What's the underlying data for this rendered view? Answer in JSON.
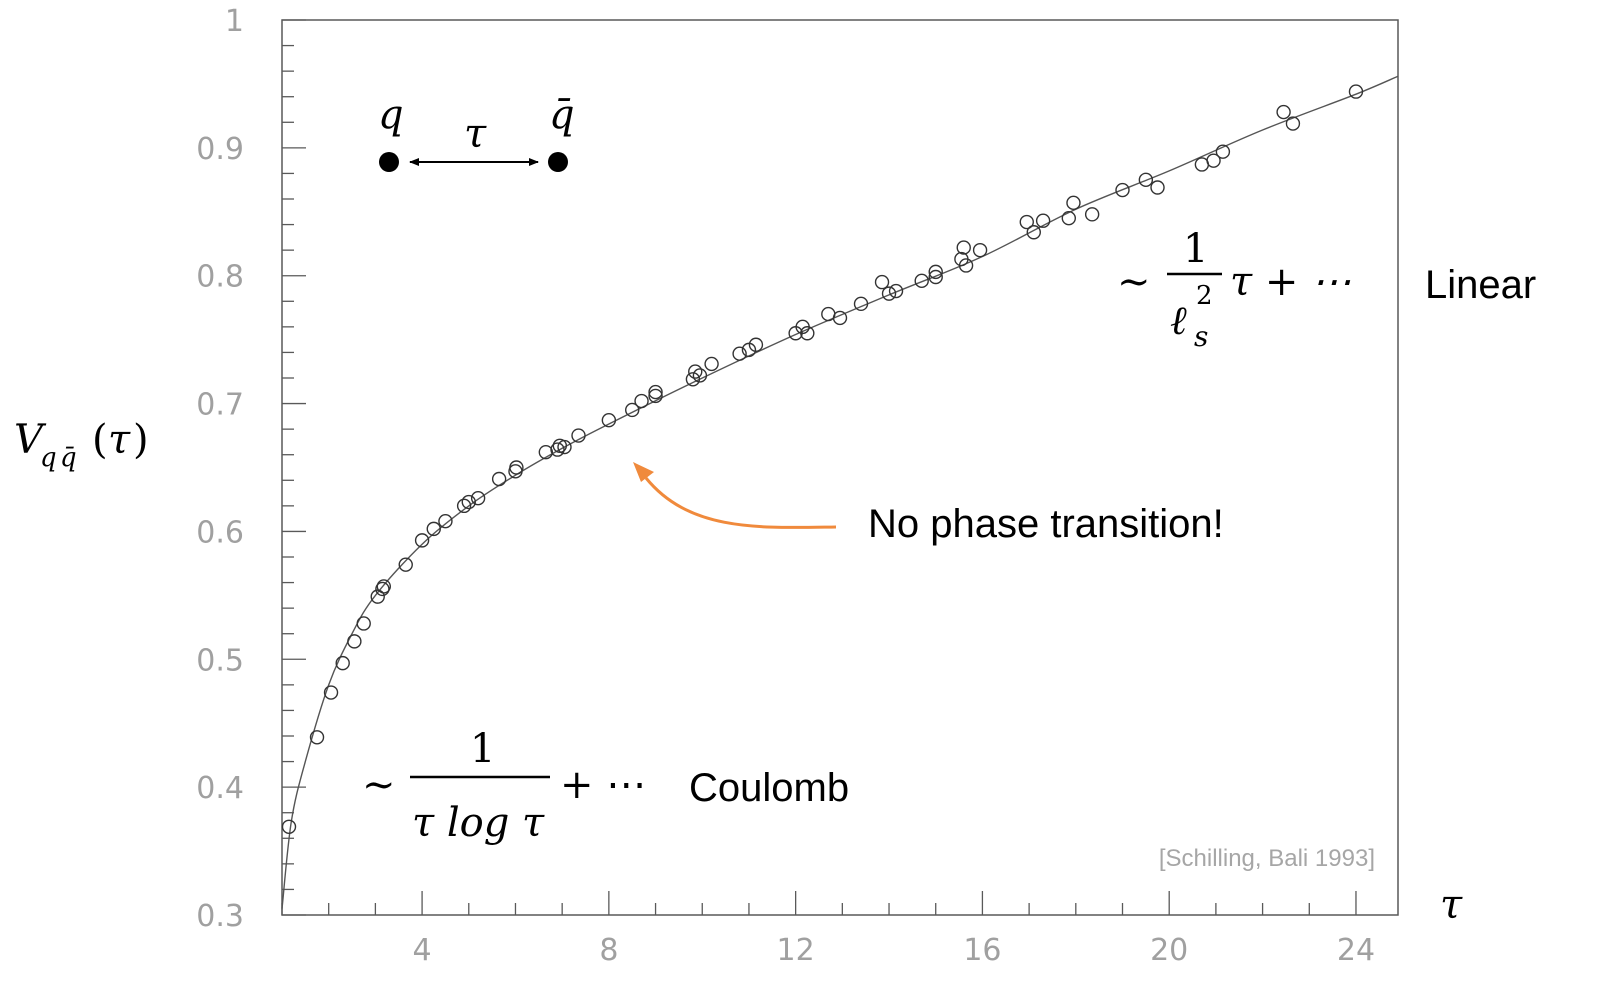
{
  "chart_data": {
    "type": "scatter",
    "title": "",
    "xlabel": "τ",
    "ylabel": "V_{q q̄}(τ)",
    "xlim": [
      1,
      24.9
    ],
    "ylim": [
      0.3,
      1.0
    ],
    "x_ticks": [
      4,
      8,
      12,
      16,
      20,
      24
    ],
    "x_tick_labels": [
      "4",
      "8",
      "12",
      "16",
      "20",
      "24"
    ],
    "y_ticks": [
      0.3,
      0.4,
      0.5,
      0.6,
      0.7,
      0.8,
      0.9,
      1.0
    ],
    "y_tick_labels": [
      "0.3",
      "0.4",
      "0.5",
      "0.6",
      "0.7",
      "0.8",
      "0.9",
      "1"
    ],
    "grid": false,
    "series": [
      {
        "marker": "open-circle",
        "points": [
          [
            1.15,
            0.369
          ],
          [
            1.75,
            0.439
          ],
          [
            2.05,
            0.474
          ],
          [
            2.3,
            0.497
          ],
          [
            2.55,
            0.514
          ],
          [
            2.75,
            0.528
          ],
          [
            3.05,
            0.549
          ],
          [
            3.15,
            0.555
          ],
          [
            3.18,
            0.557
          ],
          [
            3.65,
            0.574
          ],
          [
            4.0,
            0.593
          ],
          [
            4.25,
            0.602
          ],
          [
            4.5,
            0.608
          ],
          [
            4.9,
            0.62
          ],
          [
            5.0,
            0.623
          ],
          [
            5.2,
            0.626
          ],
          [
            5.65,
            0.641
          ],
          [
            6.0,
            0.647
          ],
          [
            6.02,
            0.65
          ],
          [
            6.65,
            0.662
          ],
          [
            6.9,
            0.664
          ],
          [
            6.95,
            0.667
          ],
          [
            7.05,
            0.666
          ],
          [
            7.35,
            0.675
          ],
          [
            8.0,
            0.687
          ],
          [
            8.5,
            0.695
          ],
          [
            8.7,
            0.702
          ],
          [
            9.0,
            0.706
          ],
          [
            9.0,
            0.709
          ],
          [
            9.8,
            0.719
          ],
          [
            9.85,
            0.725
          ],
          [
            9.95,
            0.722
          ],
          [
            10.2,
            0.731
          ],
          [
            10.8,
            0.739
          ],
          [
            11.0,
            0.742
          ],
          [
            11.15,
            0.746
          ],
          [
            12.0,
            0.755
          ],
          [
            12.15,
            0.76
          ],
          [
            12.25,
            0.755
          ],
          [
            12.7,
            0.77
          ],
          [
            12.95,
            0.767
          ],
          [
            13.4,
            0.778
          ],
          [
            13.85,
            0.795
          ],
          [
            14.0,
            0.786
          ],
          [
            14.15,
            0.788
          ],
          [
            14.7,
            0.796
          ],
          [
            15.0,
            0.799
          ],
          [
            15.0,
            0.803
          ],
          [
            15.55,
            0.813
          ],
          [
            15.6,
            0.822
          ],
          [
            15.65,
            0.808
          ],
          [
            15.95,
            0.82
          ],
          [
            16.95,
            0.842
          ],
          [
            17.1,
            0.834
          ],
          [
            17.3,
            0.843
          ],
          [
            17.85,
            0.845
          ],
          [
            17.95,
            0.857
          ],
          [
            18.35,
            0.848
          ],
          [
            19.0,
            0.867
          ],
          [
            19.5,
            0.875
          ],
          [
            19.75,
            0.869
          ],
          [
            20.7,
            0.887
          ],
          [
            20.95,
            0.89
          ],
          [
            21.15,
            0.897
          ],
          [
            22.45,
            0.928
          ],
          [
            22.65,
            0.919
          ],
          [
            24.0,
            0.944
          ]
        ]
      },
      {
        "type": "line",
        "style": "fit-curve",
        "x": [
          1.0,
          1.2,
          1.5,
          2.0,
          2.5,
          3.0,
          4.0,
          5.0,
          6.0,
          7.0,
          8.0,
          10.0,
          12.0,
          14.0,
          16.0,
          18.0,
          20.0,
          22.0,
          24.0,
          24.9
        ],
        "values": [
          0.305,
          0.373,
          0.42,
          0.48,
          0.52,
          0.55,
          0.59,
          0.62,
          0.644,
          0.665,
          0.684,
          0.72,
          0.754,
          0.785,
          0.815,
          0.852,
          0.882,
          0.914,
          0.942,
          0.956
        ]
      }
    ],
    "annotations": {
      "quark_diagram": {
        "left": "q",
        "right": "q̄",
        "separation": "τ"
      },
      "linear_formula": {
        "prefix": "∼",
        "numerator": "1",
        "denominator": "ℓ",
        "denominator_sub": "s",
        "denominator_sup": "2",
        "tail": "τ + ⋯"
      },
      "linear_label": "Linear",
      "coulomb_formula": {
        "prefix": "∼",
        "numerator": "1",
        "denominator": "τ log τ",
        "tail": "+ ⋯"
      },
      "coulomb_label": "Coulomb",
      "phase_note": "No phase transition!",
      "citation": "[Schilling, Bali 1993]"
    },
    "colors": {
      "axes": "#595959",
      "tick_labels": "#a0a0a0",
      "markers": "#333333",
      "fit_curve": "#555555",
      "arrow": "#f08a3c",
      "citation": "#a6a6a6"
    }
  }
}
